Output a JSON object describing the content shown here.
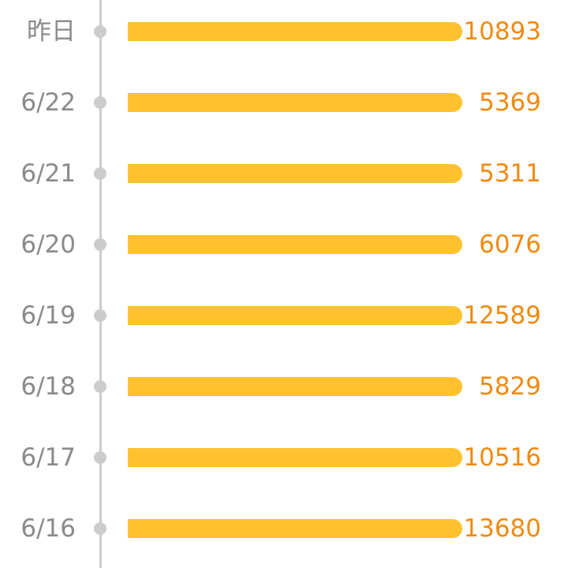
{
  "rows": [
    {
      "date": "昨日",
      "value": "10893",
      "bar_fraction": 1.0
    },
    {
      "date": "6/22",
      "value": "5369",
      "bar_fraction": 1.0
    },
    {
      "date": "6/21",
      "value": "5311",
      "bar_fraction": 1.0
    },
    {
      "date": "6/20",
      "value": "6076",
      "bar_fraction": 1.0
    },
    {
      "date": "6/19",
      "value": "12589",
      "bar_fraction": 1.0
    },
    {
      "date": "6/18",
      "value": "5829",
      "bar_fraction": 1.0
    },
    {
      "date": "6/17",
      "value": "10516",
      "bar_fraction": 1.0
    },
    {
      "date": "6/16",
      "value": "13680",
      "bar_fraction": 1.0
    }
  ],
  "colors": {
    "bar": "#ffc22e",
    "value_text": "#f08a10",
    "date_text": "#8a8a8a",
    "timeline": "#cccccc"
  }
}
